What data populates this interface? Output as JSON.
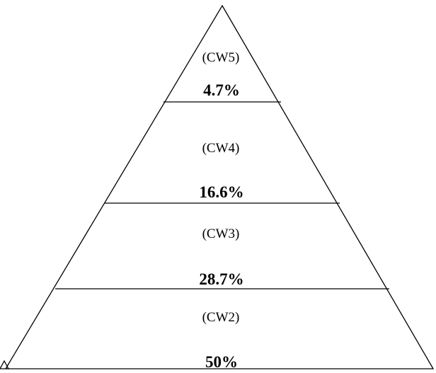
{
  "diagram": {
    "type": "pyramid",
    "colors": {
      "stroke": "#000000",
      "text": "#000000",
      "background": "#ffffff"
    },
    "tiers": [
      {
        "label": "(CW5)",
        "value": "4.7%"
      },
      {
        "label": "(CW4)",
        "value": "16.6%"
      },
      {
        "label": "(CW3)",
        "value": "28.7%"
      },
      {
        "label": "(CW2)",
        "value": "50%"
      }
    ]
  }
}
